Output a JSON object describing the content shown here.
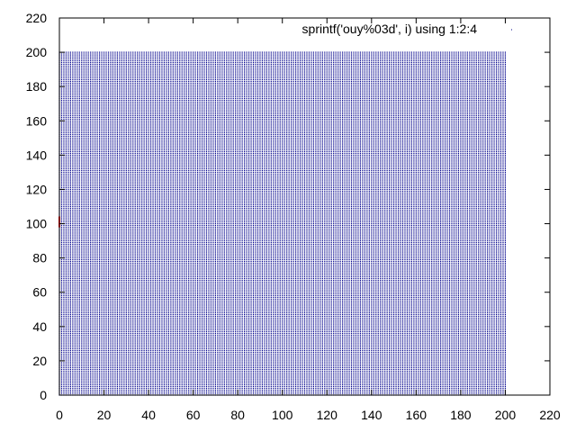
{
  "chart_data": {
    "type": "scatter",
    "title": "",
    "xlabel": "",
    "ylabel": "",
    "xlim": [
      0,
      220
    ],
    "ylim": [
      0,
      220
    ],
    "x_ticks": [
      "0",
      "20",
      "40",
      "60",
      "80",
      "100",
      "120",
      "140",
      "160",
      "180",
      "200",
      "220"
    ],
    "y_ticks": [
      "0",
      "20",
      "40",
      "60",
      "80",
      "100",
      "120",
      "140",
      "160",
      "180",
      "200",
      "220"
    ],
    "grid": false,
    "legend_position": "top-right",
    "series": [
      {
        "name": "sprintf('ouy%03d', i) using 1:2:4",
        "grid_x_range": [
          0,
          200
        ],
        "grid_y_range": [
          0,
          200
        ],
        "grid_step": 1,
        "color": "#00008b",
        "highlight_points": [
          {
            "x": 0,
            "y": 100,
            "color": "#ff0000"
          }
        ]
      }
    ]
  }
}
